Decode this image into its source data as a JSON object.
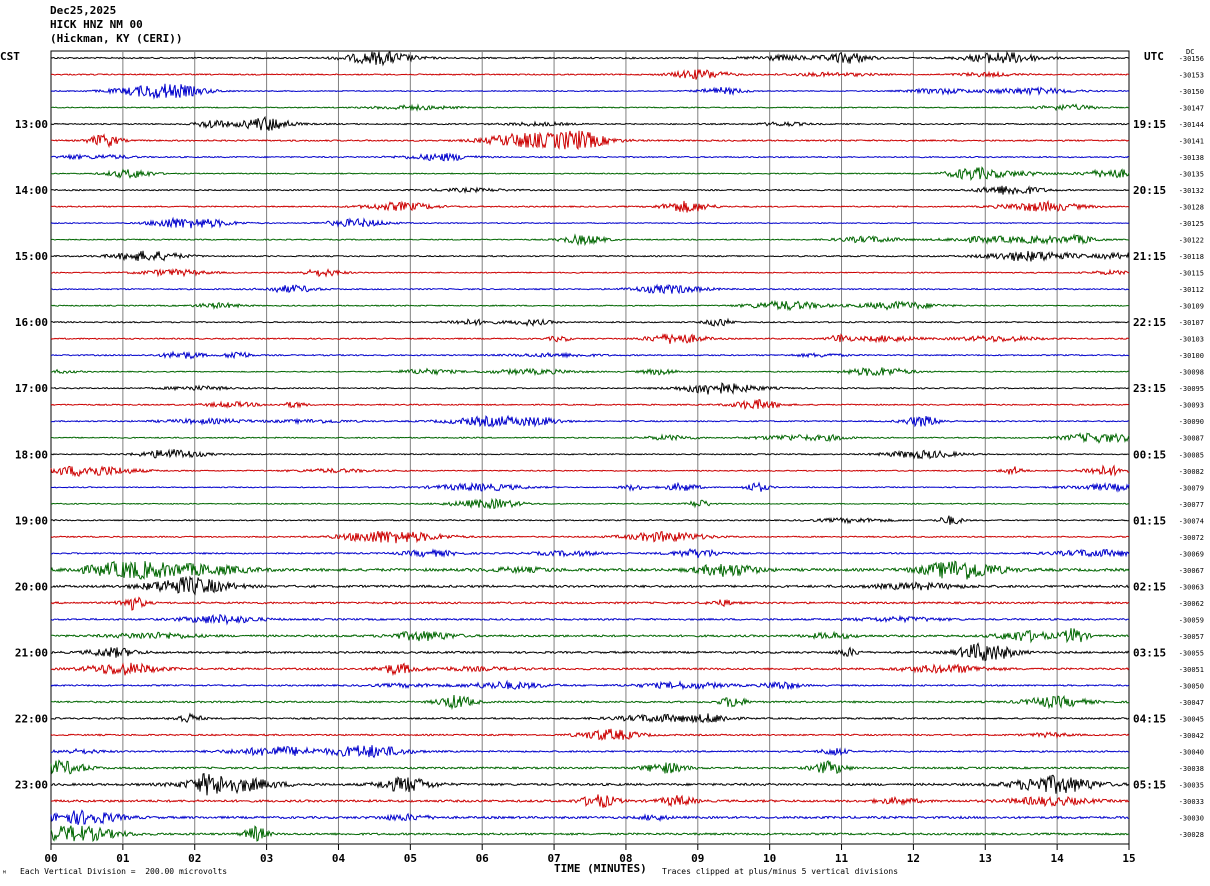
{
  "header": {
    "date": "Dec25,2025",
    "station": "HICK HNZ NM 00",
    "location": "(Hickman, KY (CERI))"
  },
  "left_timezone": "CST",
  "right_timezone": "UTC",
  "dc_label": "DC",
  "footer": {
    "scale_note": "Each Vertical Division =  200.00 microvolts",
    "clip_note": "Traces clipped at plus/minus 5 vertical divisions",
    "corner_mark": "ᴹ"
  },
  "chart_data": {
    "type": "line",
    "title": "HICK HNZ NM 00",
    "xlabel": "TIME (MINUTES)",
    "x_ticks": [
      "00",
      "01",
      "02",
      "03",
      "04",
      "05",
      "06",
      "07",
      "08",
      "09",
      "10",
      "11",
      "12",
      "13",
      "14",
      "15"
    ],
    "xlim": [
      0,
      15
    ],
    "grid": true,
    "trace_colors": [
      "#000000",
      "#cc0000",
      "#0000cc",
      "#006600"
    ],
    "left_hour_labels": [
      "13:00",
      "14:00",
      "15:00",
      "16:00",
      "17:00",
      "18:00",
      "19:00",
      "20:00",
      "21:00",
      "22:00",
      "23:00"
    ],
    "right_hour_labels": [
      "19:15",
      "20:15",
      "21:15",
      "22:15",
      "23:15",
      "00:15",
      "01:15",
      "02:15",
      "03:15",
      "04:15",
      "05:15"
    ],
    "dc_offsets": [
      "-30156",
      "-30153",
      "-30150",
      "-30147",
      "-30144",
      "-30141",
      "-30138",
      "-30135",
      "-30132",
      "-30128",
      "-30125",
      "-30122",
      "-30118",
      "-30115",
      "-30112",
      "-30109",
      "-30107",
      "-30103",
      "-30100",
      "-30098",
      "-30095",
      "-30093",
      "-30090",
      "-30087",
      "-30085",
      "-30082",
      "-30079",
      "-30077",
      "-30074",
      "-30072",
      "-30069",
      "-30067",
      "-30063",
      "-30062",
      "-30059",
      "-30057",
      "-30055",
      "-30051",
      "-30050",
      "-30047",
      "-30045",
      "-30042",
      "-30040",
      "-30038",
      "-30035",
      "-30033",
      "-30030",
      "-30028"
    ],
    "trace_noise_levels": [
      1.2,
      1.0,
      0.8,
      0.8,
      1.0,
      1.2,
      1.0,
      0.8,
      1.0,
      1.0,
      0.8,
      0.9,
      1.0,
      0.9,
      1.0,
      0.9,
      1.0,
      1.0,
      1.0,
      0.8,
      1.0,
      1.0,
      1.0,
      0.9,
      0.9,
      0.9,
      0.8,
      0.8,
      1.0,
      1.0,
      1.2,
      2.2,
      1.8,
      1.5,
      1.4,
      1.6,
      1.6,
      1.5,
      1.2,
      1.4,
      1.3,
      1.2,
      1.3,
      1.5,
      1.8,
      1.8,
      1.8,
      1.6
    ]
  }
}
